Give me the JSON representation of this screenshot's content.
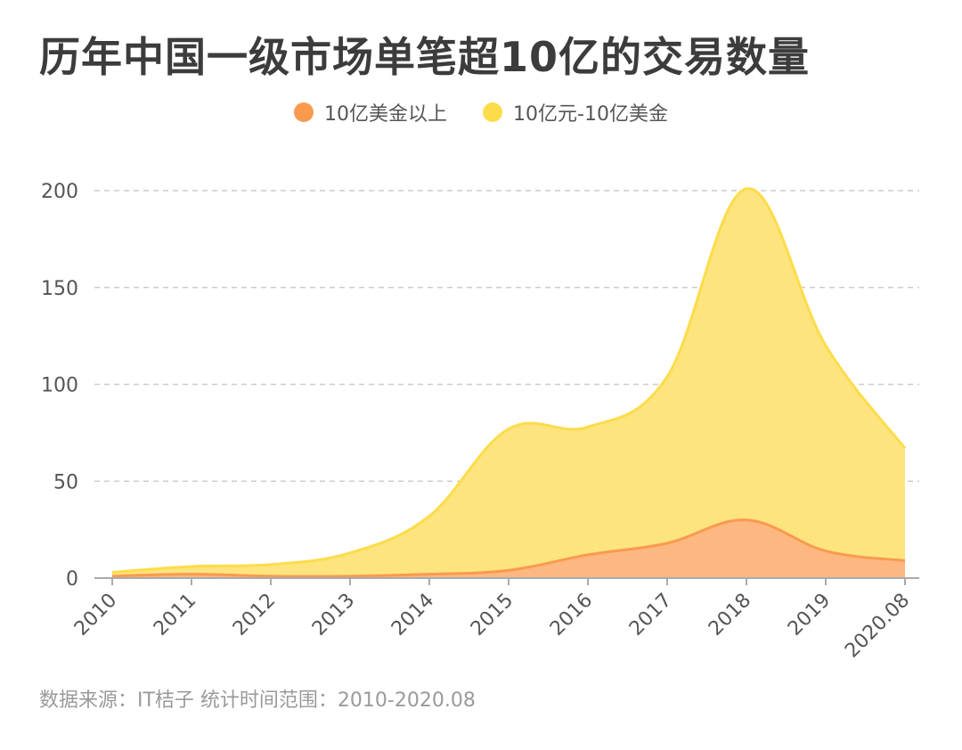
{
  "chart_data": {
    "type": "area",
    "title": "历年中国一级市场单笔超10亿的交易数量",
    "categories": [
      "2010",
      "2011",
      "2012",
      "2013",
      "2014",
      "2015",
      "2016",
      "2017",
      "2018",
      "2019",
      "2020.08"
    ],
    "series": [
      {
        "name": "10亿美金以上",
        "color": "#fa9a4f",
        "fill": "#fdb482",
        "values": [
          1,
          2,
          1,
          1,
          2,
          4,
          12,
          18,
          30,
          14,
          9
        ]
      },
      {
        "name": "10亿元-10亿美金",
        "color": "#fddc4a",
        "fill": "#fde47e",
        "values": [
          3,
          6,
          7,
          13,
          32,
          77,
          78,
          104,
          201,
          120,
          67
        ]
      }
    ],
    "stacked": false,
    "ylim": [
      0,
      200
    ],
    "yticks": [
      0,
      50,
      100,
      150,
      200
    ],
    "grid": true,
    "legend": "top-center",
    "source": "数据来源：IT桔子 统计时间范围：2010-2020.08"
  }
}
